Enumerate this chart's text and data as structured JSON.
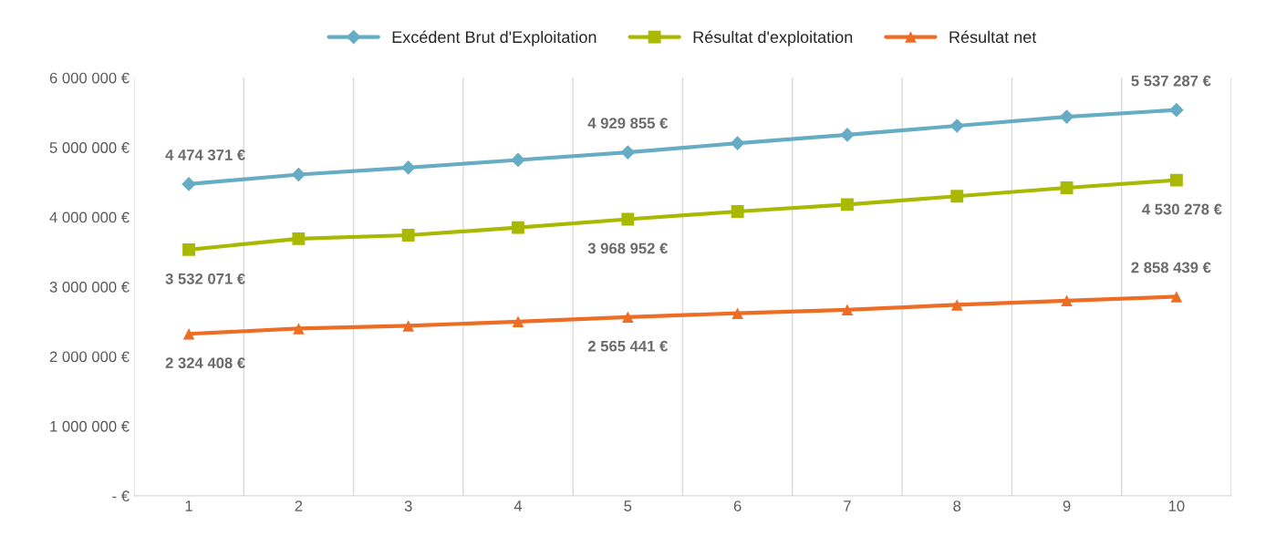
{
  "chart_data": {
    "type": "line",
    "categories": [
      "1",
      "2",
      "3",
      "4",
      "5",
      "6",
      "7",
      "8",
      "9",
      "10"
    ],
    "series": [
      {
        "name": "Excédent Brut d'Exploitation",
        "color": "#67acc5",
        "marker": "diamond",
        "values": [
          4474371,
          4610000,
          4710000,
          4820000,
          4929855,
          5060000,
          5180000,
          5310000,
          5440000,
          5537287
        ],
        "value_labels": [
          "4 474 371 €",
          null,
          null,
          null,
          "4 929 855 €",
          null,
          null,
          null,
          null,
          "5 537 287 €"
        ]
      },
      {
        "name": "Résultat d'exploitation",
        "color": "#a9b800",
        "marker": "square",
        "values": [
          3532071,
          3690000,
          3740000,
          3850000,
          3968952,
          4080000,
          4180000,
          4300000,
          4420000,
          4530278
        ],
        "value_labels": [
          "3 532 071 €",
          null,
          null,
          null,
          "3 968 952 €",
          null,
          null,
          null,
          null,
          "4 530 278 €"
        ]
      },
      {
        "name": "Résultat net",
        "color": "#ed6d25",
        "marker": "triangle",
        "values": [
          2324408,
          2400000,
          2440000,
          2500000,
          2565441,
          2620000,
          2670000,
          2740000,
          2800000,
          2858439
        ],
        "value_labels": [
          "2 324 408 €",
          null,
          null,
          null,
          "2 565 441 €",
          null,
          null,
          null,
          null,
          "2 858 439 €"
        ]
      }
    ],
    "ylim": [
      0,
      6000000
    ],
    "yticks": [
      {
        "value": 0,
        "label": "- €"
      },
      {
        "value": 1000000,
        "label": "1 000 000 €"
      },
      {
        "value": 2000000,
        "label": "2 000 000 €"
      },
      {
        "value": 3000000,
        "label": "3 000 000 €"
      },
      {
        "value": 4000000,
        "label": "4 000 000 €"
      },
      {
        "value": 5000000,
        "label": "5 000 000 €"
      },
      {
        "value": 6000000,
        "label": "6 000 000 €"
      }
    ],
    "grid": "x",
    "legend": "top",
    "line_style": "solid"
  }
}
